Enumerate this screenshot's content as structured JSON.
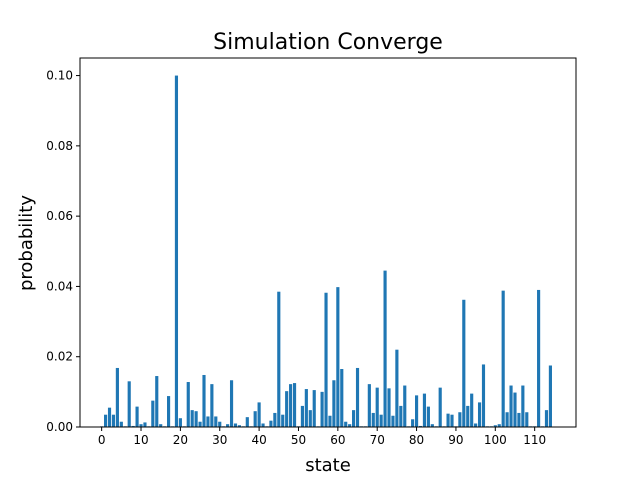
{
  "chart_data": {
    "type": "bar",
    "title": "Simulation Converge",
    "xlabel": "state",
    "ylabel": "probability",
    "xlim": [
      -5.5,
      120.5
    ],
    "ylim": [
      0,
      0.105
    ],
    "xticks": [
      0,
      10,
      20,
      30,
      40,
      50,
      60,
      70,
      80,
      90,
      100,
      110
    ],
    "yticks": [
      "0.00",
      "0.02",
      "0.04",
      "0.06",
      "0.08",
      "0.10"
    ],
    "bar_color": "#1f77b4",
    "grid": false,
    "x": [
      0,
      1,
      2,
      3,
      4,
      5,
      6,
      7,
      8,
      9,
      10,
      11,
      12,
      13,
      14,
      15,
      16,
      17,
      18,
      19,
      20,
      21,
      22,
      23,
      24,
      25,
      26,
      27,
      28,
      29,
      30,
      31,
      32,
      33,
      34,
      35,
      36,
      37,
      38,
      39,
      40,
      41,
      42,
      43,
      44,
      45,
      46,
      47,
      48,
      49,
      50,
      51,
      52,
      53,
      54,
      55,
      56,
      57,
      58,
      59,
      60,
      61,
      62,
      63,
      64,
      65,
      66,
      67,
      68,
      69,
      70,
      71,
      72,
      73,
      74,
      75,
      76,
      77,
      78,
      79,
      80,
      81,
      82,
      83,
      84,
      85,
      86,
      87,
      88,
      89,
      90,
      91,
      92,
      93,
      94,
      95,
      96,
      97,
      98,
      99,
      100,
      101,
      102,
      103,
      104,
      105,
      106,
      107,
      108,
      109,
      110,
      111,
      112,
      113,
      114
    ],
    "values": [
      0.0002,
      0.0035,
      0.0055,
      0.0035,
      0.0168,
      0.0015,
      0.0002,
      0.013,
      0.0003,
      0.0058,
      0.0008,
      0.0013,
      0.0002,
      0.0075,
      0.0145,
      0.0008,
      0.0002,
      0.0088,
      0.0002,
      0.1,
      0.0025,
      0.0002,
      0.0128,
      0.0048,
      0.0045,
      0.0015,
      0.0148,
      0.003,
      0.0122,
      0.003,
      0.0015,
      0.0002,
      0.0008,
      0.0133,
      0.001,
      0.0005,
      0.0002,
      0.0028,
      0.0002,
      0.0045,
      0.007,
      0.001,
      0.0002,
      0.0018,
      0.004,
      0.0385,
      0.0035,
      0.0102,
      0.0122,
      0.0125,
      0.0002,
      0.006,
      0.0108,
      0.0048,
      0.0105,
      0.0002,
      0.01,
      0.0382,
      0.0032,
      0.0133,
      0.0398,
      0.0165,
      0.0015,
      0.0008,
      0.0048,
      0.0168,
      0.0002,
      0.0002,
      0.0122,
      0.004,
      0.0112,
      0.0035,
      0.0445,
      0.011,
      0.0032,
      0.022,
      0.006,
      0.0118,
      0.0002,
      0.0022,
      0.009,
      0.0003,
      0.0095,
      0.0058,
      0.0008,
      0.0002,
      0.0112,
      0.0002,
      0.0038,
      0.0035,
      0.0002,
      0.0042,
      0.0362,
      0.006,
      0.0095,
      0.001,
      0.007,
      0.0178,
      0.0002,
      0.0002,
      0.0005,
      0.0008,
      0.0388,
      0.0042,
      0.0118,
      0.0098,
      0.004,
      0.0118,
      0.0042,
      0.0002,
      0.0002,
      0.039,
      0.0002,
      0.0048,
      0.0175
    ]
  }
}
